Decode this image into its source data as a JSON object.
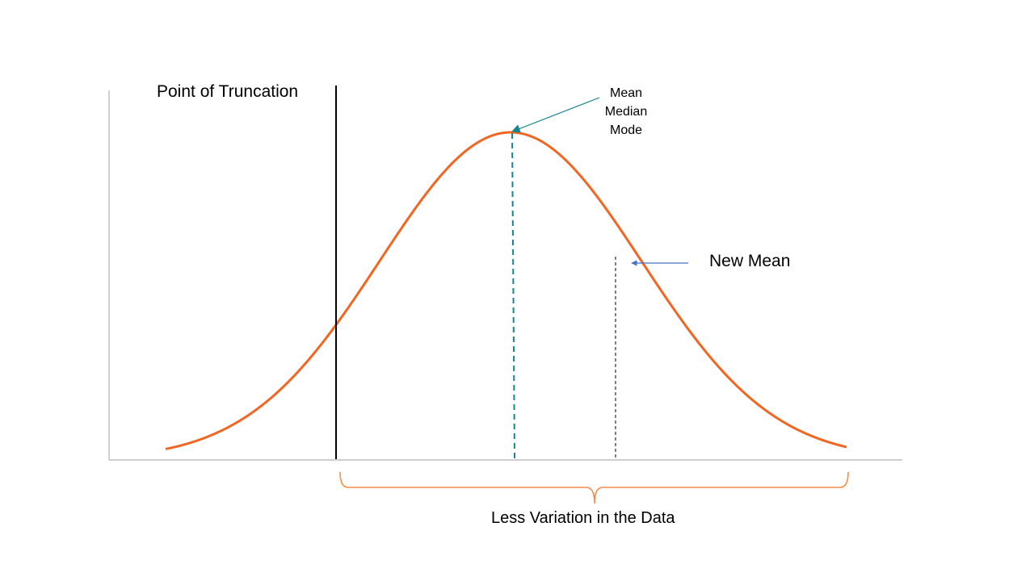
{
  "labels": {
    "truncation": "Point of Truncation",
    "stats": [
      "Mean",
      "Median",
      "Mode"
    ],
    "new_mean": "New Mean",
    "variation": "Less Variation in the Data"
  },
  "colors": {
    "curve": "#F26522",
    "mean_line": "#17868C",
    "new_mean_arrow": "#4472C4",
    "stats_arrow": "#17868C",
    "axis": "#BFBFBF",
    "truncation_line": "#000000",
    "brace": "#F58A4A"
  }
}
